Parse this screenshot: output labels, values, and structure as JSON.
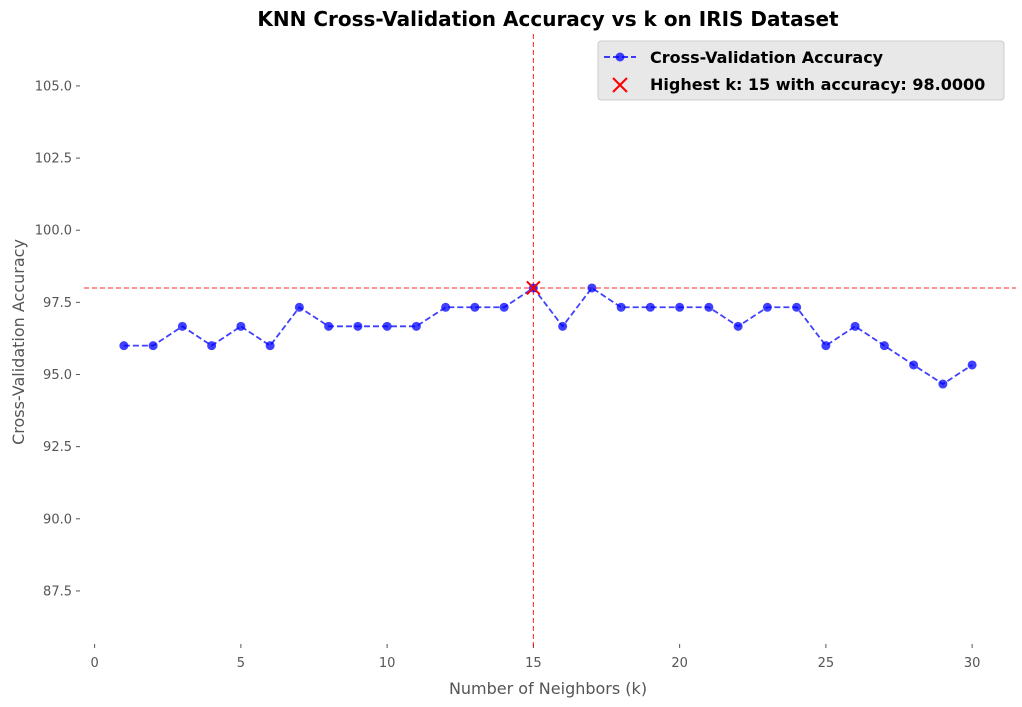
{
  "chart_data": {
    "type": "line",
    "title": "KNN Cross-Validation Accuracy vs k on IRIS Dataset",
    "xlabel": "Number of Neighbors (k)",
    "ylabel": "Cross-Validation Accuracy",
    "xlim": [
      -0.5,
      31.5
    ],
    "ylim": [
      85.8,
      106.8
    ],
    "xticks": [
      0,
      5,
      10,
      15,
      20,
      25,
      30
    ],
    "xtick_labels": [
      "0",
      "5",
      "10",
      "15",
      "20",
      "25",
      "30"
    ],
    "yticks": [
      87.5,
      90.0,
      92.5,
      95.0,
      97.5,
      100.0,
      102.5,
      105.0
    ],
    "ytick_labels": [
      "87.5",
      "90.0",
      "92.5",
      "95.0",
      "97.5",
      "100.0",
      "102.5",
      "105.0"
    ],
    "grid": false,
    "series": [
      {
        "name": "Cross-Validation Accuracy",
        "color": "#0000ff",
        "line_style": "dashed",
        "marker": "circle",
        "x": [
          1,
          2,
          3,
          4,
          5,
          6,
          7,
          8,
          9,
          10,
          11,
          12,
          13,
          14,
          15,
          16,
          17,
          18,
          19,
          20,
          21,
          22,
          23,
          24,
          25,
          26,
          27,
          28,
          29,
          30
        ],
        "y": [
          96.0,
          96.0,
          96.67,
          96.0,
          96.67,
          96.0,
          97.33,
          96.67,
          96.67,
          96.67,
          96.67,
          97.33,
          97.33,
          97.33,
          98.0,
          96.67,
          98.0,
          97.33,
          97.33,
          97.33,
          97.33,
          96.67,
          97.33,
          97.33,
          96.0,
          96.67,
          96.0,
          95.33,
          94.67,
          95.33
        ]
      }
    ],
    "highlight": {
      "name": "Highest k: 15 with accuracy: 98.0000",
      "x": 15,
      "y": 98.0,
      "marker": "x",
      "color": "#ff0000"
    },
    "reference_lines": {
      "vertical_x": 15,
      "horizontal_y": 98.0,
      "color": "#ff0000",
      "style": "dashed"
    },
    "legend": {
      "position": "top-right",
      "entries": [
        "Cross-Validation Accuracy",
        "Highest k: 15 with accuracy: 98.0000"
      ]
    }
  }
}
